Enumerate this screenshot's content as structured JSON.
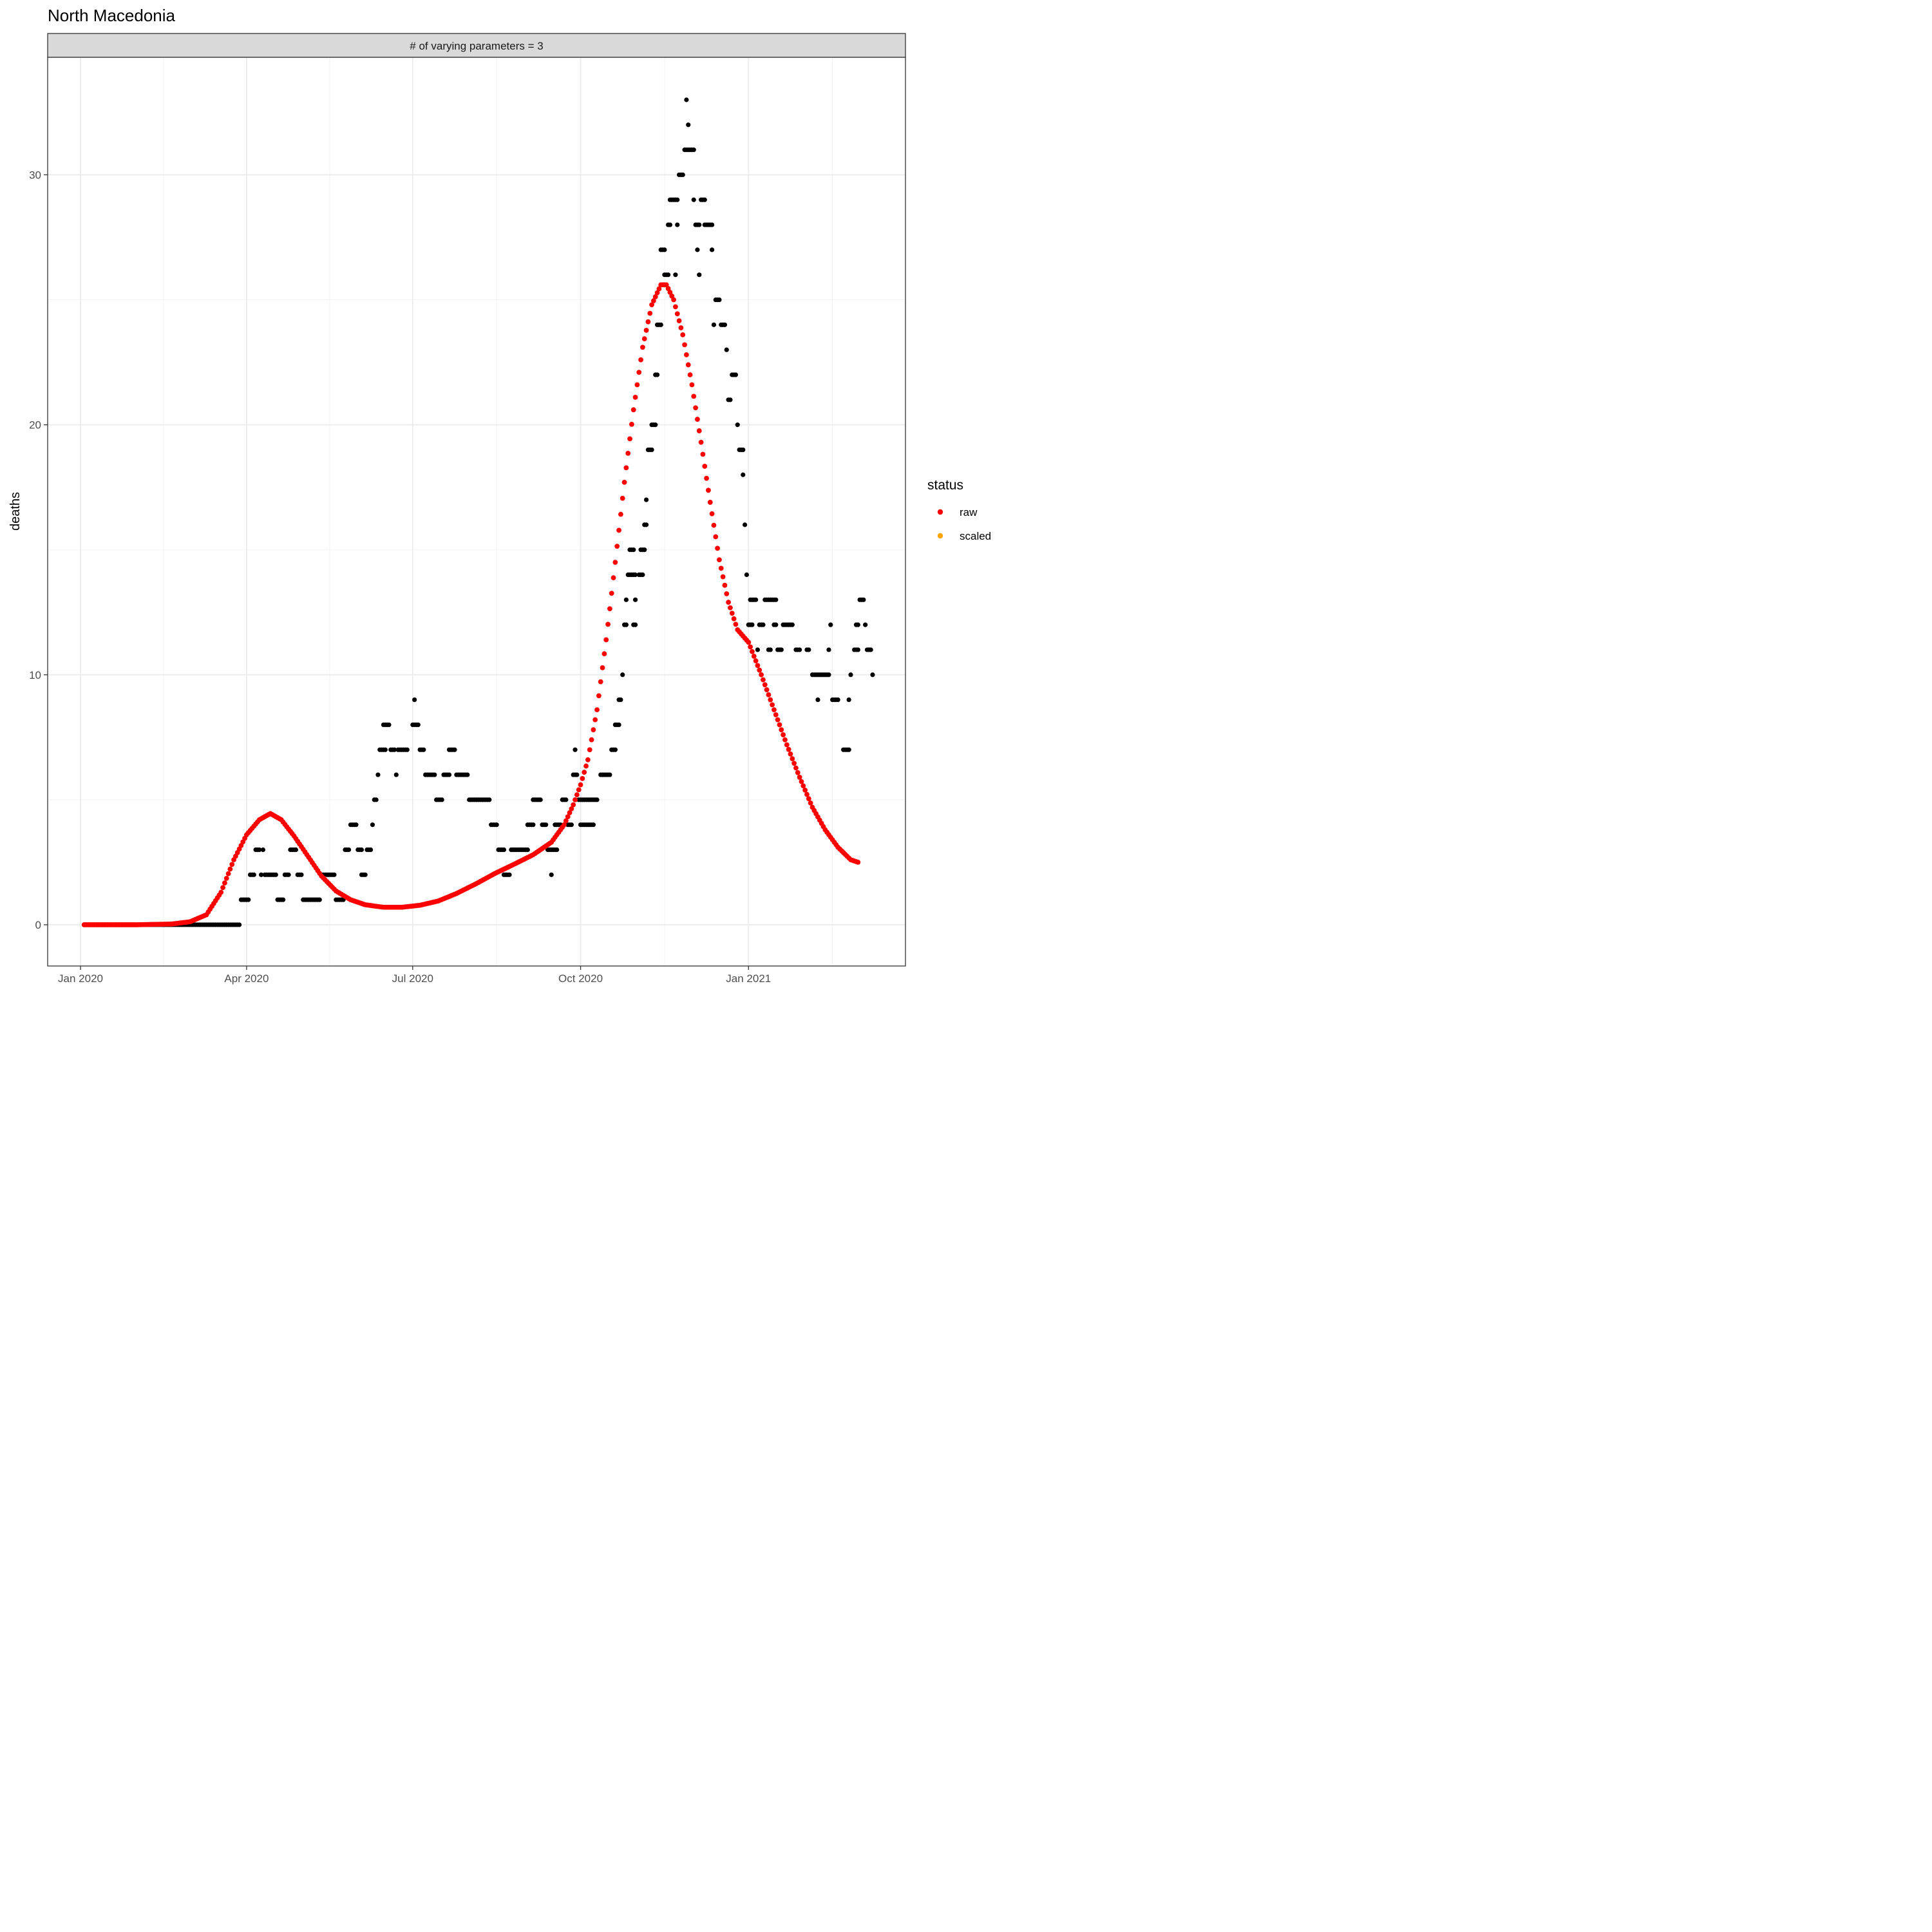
{
  "chart_data": {
    "type": "scatter",
    "title": "North Macedonia",
    "facet_label": "# of varying parameters = 3",
    "xlabel": "",
    "ylabel": "deaths",
    "x_ticks": [
      "2020-01-01",
      "2020-04-01",
      "2020-07-01",
      "2020-10-01",
      "2021-01-01"
    ],
    "x_tick_labels": [
      "Jan 2020",
      "Apr 2020",
      "Jul 2020",
      "Oct 2020",
      "Jan 2021"
    ],
    "xlim": [
      "2019-12-14",
      "2021-03-28"
    ],
    "y_ticks": [
      0,
      10,
      20,
      30
    ],
    "y_tick_labels": [
      "0",
      "10",
      "20",
      "30"
    ],
    "ylim": [
      -1.65,
      34.7
    ],
    "grid": true,
    "legend": {
      "title": "status",
      "position": "right",
      "entries": [
        {
          "label": "raw",
          "color": "#ff0000"
        },
        {
          "label": "scaled",
          "color": "#ffa500"
        }
      ]
    },
    "series": [
      {
        "name": "raw",
        "color": "#ff0000",
        "style": "curve",
        "knots": [
          [
            "2020-01-03",
            0
          ],
          [
            "2020-02-01",
            0
          ],
          [
            "2020-02-20",
            0.03
          ],
          [
            "2020-03-01",
            0.12
          ],
          [
            "2020-03-10",
            0.4
          ],
          [
            "2020-03-18",
            1.3
          ],
          [
            "2020-03-25",
            2.6
          ],
          [
            "2020-04-01",
            3.6
          ],
          [
            "2020-04-08",
            4.2
          ],
          [
            "2020-04-14",
            4.45
          ],
          [
            "2020-04-20",
            4.2
          ],
          [
            "2020-04-27",
            3.55
          ],
          [
            "2020-05-05",
            2.7
          ],
          [
            "2020-05-12",
            1.95
          ],
          [
            "2020-05-20",
            1.35
          ],
          [
            "2020-05-28",
            1.0
          ],
          [
            "2020-06-05",
            0.8
          ],
          [
            "2020-06-15",
            0.7
          ],
          [
            "2020-06-25",
            0.7
          ],
          [
            "2020-07-05",
            0.78
          ],
          [
            "2020-07-15",
            0.95
          ],
          [
            "2020-07-25",
            1.25
          ],
          [
            "2020-08-05",
            1.65
          ],
          [
            "2020-08-15",
            2.05
          ],
          [
            "2020-08-25",
            2.4
          ],
          [
            "2020-09-05",
            2.8
          ],
          [
            "2020-09-15",
            3.3
          ],
          [
            "2020-09-22",
            4.0
          ],
          [
            "2020-09-27",
            4.8
          ],
          [
            "2020-10-01",
            5.6
          ],
          [
            "2020-10-05",
            6.6
          ],
          [
            "2020-10-10",
            8.6
          ],
          [
            "2020-10-15",
            11.4
          ],
          [
            "2020-10-20",
            14.5
          ],
          [
            "2020-10-25",
            17.7
          ],
          [
            "2020-10-30",
            20.6
          ],
          [
            "2020-11-04",
            23.1
          ],
          [
            "2020-11-09",
            24.8
          ],
          [
            "2020-11-14",
            25.6
          ],
          [
            "2020-11-17",
            25.6
          ],
          [
            "2020-11-21",
            25.0
          ],
          [
            "2020-11-26",
            23.6
          ],
          [
            "2020-12-01",
            21.6
          ],
          [
            "2020-12-06",
            19.3
          ],
          [
            "2020-12-11",
            16.9
          ],
          [
            "2020-12-16",
            14.6
          ],
          [
            "2020-12-21",
            12.9
          ],
          [
            "2020-12-26",
            11.8
          ],
          [
            "2021-01-01",
            11.3
          ],
          [
            "2021-01-08",
            10.0
          ],
          [
            "2021-01-15",
            8.6
          ],
          [
            "2021-01-22",
            7.2
          ],
          [
            "2021-01-29",
            5.9
          ],
          [
            "2021-02-05",
            4.7
          ],
          [
            "2021-02-12",
            3.8
          ],
          [
            "2021-02-19",
            3.1
          ],
          [
            "2021-02-26",
            2.6
          ],
          [
            "2021-03-02",
            2.5
          ]
        ]
      },
      {
        "name": "scaled",
        "color": "#ffa500",
        "style": "points",
        "points": []
      }
    ],
    "observed_points": {
      "color": "#000000",
      "runs": [
        [
          "2020-01-03",
          86,
          0
        ],
        [
          "2020-03-29",
          5,
          1
        ],
        [
          "2020-04-03",
          3,
          2
        ],
        [
          "2020-04-06",
          3,
          3
        ],
        [
          "2020-04-09",
          1,
          2
        ],
        [
          "2020-04-10",
          1,
          3
        ],
        [
          "2020-04-11",
          7,
          2
        ],
        [
          "2020-04-18",
          4,
          1
        ],
        [
          "2020-04-22",
          3,
          2
        ],
        [
          "2020-04-25",
          4,
          3
        ],
        [
          "2020-04-29",
          3,
          2
        ],
        [
          "2020-05-02",
          10,
          1
        ],
        [
          "2020-05-12",
          8,
          2
        ],
        [
          "2020-05-20",
          5,
          1
        ],
        [
          "2020-05-25",
          3,
          3
        ],
        [
          "2020-05-28",
          4,
          4
        ],
        [
          "2020-06-01",
          3,
          3
        ],
        [
          "2020-06-03",
          3,
          2
        ],
        [
          "2020-06-06",
          3,
          3
        ],
        [
          "2020-06-09",
          1,
          4
        ],
        [
          "2020-06-10",
          2,
          5
        ],
        [
          "2020-06-12",
          1,
          6
        ],
        [
          "2020-06-13",
          4,
          7
        ],
        [
          "2020-06-15",
          4,
          8
        ],
        [
          "2020-06-19",
          3,
          7
        ],
        [
          "2020-06-22",
          1,
          6
        ],
        [
          "2020-06-23",
          6,
          7
        ],
        [
          "2020-07-02",
          1,
          9
        ],
        [
          "2020-07-01",
          4,
          8
        ],
        [
          "2020-07-05",
          3,
          7
        ],
        [
          "2020-07-08",
          6,
          6
        ],
        [
          "2020-07-14",
          4,
          5
        ],
        [
          "2020-07-18",
          4,
          6
        ],
        [
          "2020-07-21",
          4,
          7
        ],
        [
          "2020-07-25",
          6,
          6
        ],
        [
          "2020-07-31",
          1,
          6
        ],
        [
          "2020-08-01",
          12,
          5
        ],
        [
          "2020-08-13",
          4,
          4
        ],
        [
          "2020-08-17",
          4,
          3
        ],
        [
          "2020-08-20",
          4,
          2
        ],
        [
          "2020-08-24",
          10,
          3
        ],
        [
          "2020-09-02",
          4,
          4
        ],
        [
          "2020-09-05",
          5,
          5
        ],
        [
          "2020-09-10",
          3,
          4
        ],
        [
          "2020-09-13",
          6,
          3
        ],
        [
          "2020-09-15",
          1,
          2
        ],
        [
          "2020-09-17",
          4,
          4
        ],
        [
          "2020-09-21",
          3,
          5
        ],
        [
          "2020-09-24",
          3,
          4
        ],
        [
          "2020-09-27",
          3,
          6
        ],
        [
          "2020-09-28",
          1,
          7
        ],
        [
          "2020-09-30",
          5,
          5
        ],
        [
          "2020-10-01",
          8,
          4
        ],
        [
          "2020-10-05",
          6,
          5
        ],
        [
          "2020-10-12",
          6,
          6
        ],
        [
          "2020-10-18",
          3,
          7
        ],
        [
          "2020-10-20",
          3,
          8
        ],
        [
          "2020-10-22",
          2,
          9
        ],
        [
          "2020-10-24",
          1,
          10
        ],
        [
          "2020-10-25",
          2,
          12
        ],
        [
          "2020-10-26",
          1,
          13
        ],
        [
          "2020-10-27",
          5,
          14
        ],
        [
          "2020-10-28",
          3,
          15
        ],
        [
          "2020-10-30",
          2,
          12
        ],
        [
          "2020-10-31",
          1,
          13
        ],
        [
          "2020-11-02",
          3,
          14
        ],
        [
          "2020-11-03",
          3,
          15
        ],
        [
          "2020-11-05",
          2,
          16
        ],
        [
          "2020-11-06",
          1,
          17
        ],
        [
          "2020-11-07",
          3,
          19
        ],
        [
          "2020-11-09",
          3,
          20
        ],
        [
          "2020-11-11",
          2,
          22
        ],
        [
          "2020-11-12",
          3,
          24
        ],
        [
          "2020-11-14",
          3,
          27
        ],
        [
          "2020-11-16",
          3,
          26
        ],
        [
          "2020-11-18",
          2,
          28
        ],
        [
          "2020-11-19",
          5,
          29
        ],
        [
          "2020-11-22",
          1,
          26
        ],
        [
          "2020-11-23",
          1,
          28
        ],
        [
          "2020-11-24",
          3,
          30
        ],
        [
          "2020-11-27",
          3,
          31
        ],
        [
          "2020-11-28",
          1,
          33
        ],
        [
          "2020-11-29",
          1,
          32
        ],
        [
          "2020-11-30",
          3,
          31
        ],
        [
          "2020-12-02",
          1,
          29
        ],
        [
          "2020-12-03",
          3,
          28
        ],
        [
          "2020-12-04",
          1,
          27
        ],
        [
          "2020-12-05",
          1,
          26
        ],
        [
          "2020-12-06",
          3,
          29
        ],
        [
          "2020-12-08",
          5,
          28
        ],
        [
          "2020-12-12",
          1,
          27
        ],
        [
          "2020-12-13",
          1,
          24
        ],
        [
          "2020-12-14",
          3,
          25
        ],
        [
          "2020-12-17",
          3,
          24
        ],
        [
          "2020-12-20",
          1,
          23
        ],
        [
          "2020-12-21",
          2,
          21
        ],
        [
          "2020-12-23",
          3,
          22
        ],
        [
          "2020-12-26",
          1,
          20
        ],
        [
          "2020-12-27",
          3,
          19
        ],
        [
          "2020-12-29",
          1,
          18
        ],
        [
          "2020-12-30",
          1,
          16
        ],
        [
          "2020-12-31",
          1,
          14
        ],
        [
          "2021-01-02",
          4,
          13
        ],
        [
          "2021-01-01",
          3,
          12
        ],
        [
          "2021-01-06",
          1,
          11
        ],
        [
          "2021-01-07",
          3,
          12
        ],
        [
          "2021-01-10",
          7,
          13
        ],
        [
          "2021-01-12",
          2,
          11
        ],
        [
          "2021-01-15",
          2,
          12
        ],
        [
          "2021-01-17",
          3,
          11
        ],
        [
          "2021-01-20",
          6,
          12
        ],
        [
          "2021-01-27",
          3,
          11
        ],
        [
          "2021-02-02",
          2,
          11
        ],
        [
          "2021-02-05",
          5,
          10
        ],
        [
          "2021-02-08",
          1,
          9
        ],
        [
          "2021-02-10",
          5,
          10
        ],
        [
          "2021-02-14",
          1,
          11
        ],
        [
          "2021-02-15",
          1,
          12
        ],
        [
          "2021-02-16",
          4,
          9
        ],
        [
          "2021-02-22",
          4,
          7
        ],
        [
          "2021-02-25",
          1,
          9
        ],
        [
          "2021-02-26",
          1,
          10
        ],
        [
          "2021-02-28",
          3,
          11
        ],
        [
          "2021-03-01",
          2,
          12
        ],
        [
          "2021-03-03",
          3,
          13
        ],
        [
          "2021-03-06",
          1,
          12
        ],
        [
          "2021-03-07",
          3,
          11
        ],
        [
          "2021-03-10",
          1,
          10
        ]
      ]
    }
  }
}
